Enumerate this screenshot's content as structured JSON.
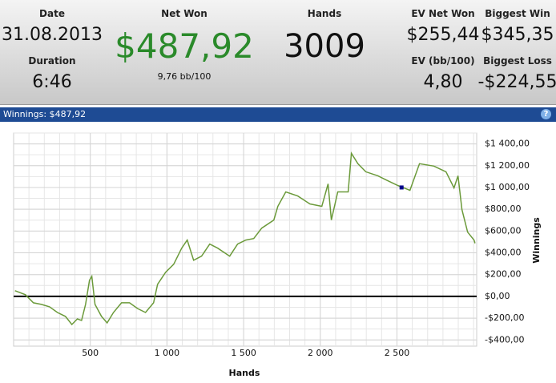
{
  "header": {
    "date_label": "Date",
    "date": "31.08.2013",
    "duration_label": "Duration",
    "duration": "6:46",
    "net_won_label": "Net Won",
    "net_won": "$487,92",
    "bb_per_100": "9,76 bb/100",
    "hands_label": "Hands",
    "hands": "3009",
    "ev_net_won_label": "EV Net Won",
    "ev_net_won": "$255,44",
    "ev_bb_label": "EV (bb/100)",
    "ev_bb": "4,80",
    "biggest_win_label": "Biggest Win",
    "biggest_win": "$345,35",
    "biggest_loss_label": "Biggest Loss",
    "biggest_loss": "-$224,55"
  },
  "panel_title": "Winnings: $487,92",
  "help": "?",
  "chart_data": {
    "type": "line",
    "xlabel": "Hands",
    "ylabel": "Winnings",
    "color": "#6b9a3a",
    "grid": true,
    "x": [
      9,
      77,
      129,
      181,
      234,
      286,
      338,
      380,
      416,
      443,
      469,
      495,
      510,
      531,
      573,
      610,
      651,
      704,
      756,
      808,
      860,
      913,
      939,
      991,
      1044,
      1096,
      1132,
      1174,
      1226,
      1279,
      1331,
      1409,
      1461,
      1514,
      1566,
      1618,
      1697,
      1723,
      1775,
      1853,
      1932,
      2010,
      2051,
      2072,
      2114,
      2182,
      2203,
      2245,
      2297,
      2376,
      2428,
      2506,
      2585,
      2647,
      2741,
      2820,
      2872,
      2898,
      2924,
      2961,
      3003,
      3009
    ],
    "values": [
      52,
      15,
      -59,
      -74,
      -96,
      -148,
      -184,
      -258,
      -207,
      -221,
      -74,
      148,
      184,
      -74,
      -184,
      -244,
      -148,
      -59,
      -59,
      -111,
      -148,
      -59,
      111,
      221,
      295,
      443,
      517,
      332,
      369,
      480,
      443,
      369,
      480,
      517,
      531,
      627,
      701,
      827,
      959,
      922,
      849,
      827,
      1033,
      701,
      959,
      959,
      1314,
      1218,
      1144,
      1107,
      1070,
      1018,
      974,
      1218,
      1196,
      1144,
      996,
      1107,
      797,
      590,
      517,
      488
    ],
    "marker": {
      "x": 2530,
      "y": 1000,
      "color": "#00008b"
    },
    "xlim": [
      0,
      3020
    ],
    "ylim": [
      -457,
      1500
    ],
    "xticks": [
      500,
      {
        "value": 1000,
        "label": "1 000"
      },
      {
        "value": 1500,
        "label": "1 500"
      },
      {
        "value": 2000,
        "label": "2 000"
      },
      {
        "value": 2500,
        "label": "2 500"
      }
    ],
    "yticks": [
      {
        "value": -400,
        "label": "-$400,00"
      },
      {
        "value": -200,
        "label": "-$200,00"
      },
      {
        "value": 0,
        "label": "$0,00"
      },
      {
        "value": 200,
        "label": "$200,00"
      },
      {
        "value": 400,
        "label": "$400,00"
      },
      {
        "value": 600,
        "label": "$600,00"
      },
      {
        "value": 800,
        "label": "$800,00"
      },
      {
        "value": 1000,
        "label": "$1 000,00"
      },
      {
        "value": 1200,
        "label": "$1 200,00"
      },
      {
        "value": 1400,
        "label": "$1 400,00"
      }
    ]
  }
}
